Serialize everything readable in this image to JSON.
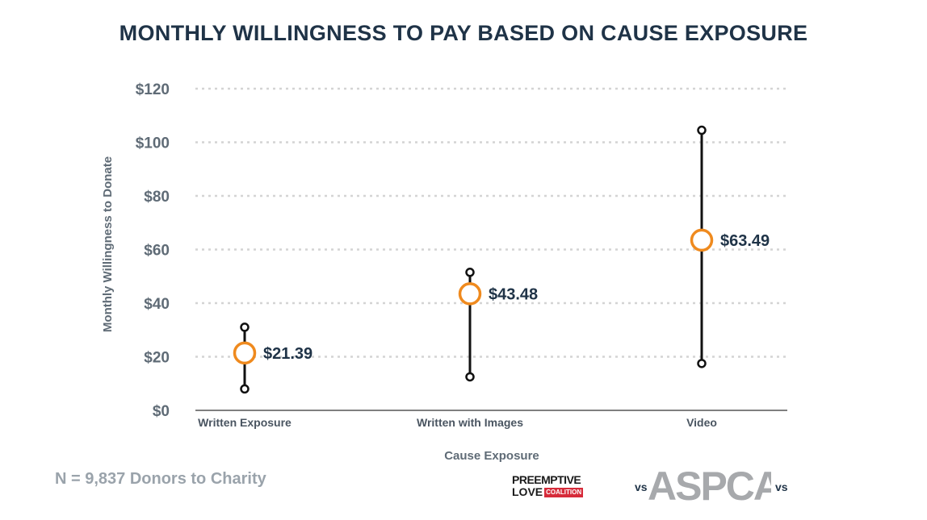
{
  "chart_data": {
    "type": "scatter",
    "title": "MONTHLY WILLINGNESS TO PAY BASED ON CAUSE EXPOSURE",
    "xlabel": "Cause Exposure",
    "ylabel": "Monthly Willingness to Donate",
    "ylim": [
      0,
      120
    ],
    "yticks": [
      0,
      20,
      40,
      60,
      80,
      100,
      120
    ],
    "ytick_labels": [
      "$0",
      "$20",
      "$40",
      "$60",
      "$80",
      "$100",
      "$120"
    ],
    "grid": true,
    "categories": [
      "Written Exposure",
      "Written with Images",
      "Video"
    ],
    "points": [
      {
        "category": "Written Exposure",
        "value": 21.39,
        "label": "$21.39",
        "low": 8,
        "high": 31
      },
      {
        "category": "Written with Images",
        "value": 43.48,
        "label": "$43.48",
        "low": 12.5,
        "high": 51.5
      },
      {
        "category": "Video",
        "value": 63.49,
        "label": "$63.49",
        "low": 17.5,
        "high": 104.5
      }
    ],
    "colors": {
      "marker": "#ef8a1e",
      "whisker": "#111111",
      "grid": "#d4d4d4",
      "axis": "#555555"
    }
  },
  "footnote": "N = 9,837 Donors to Charity",
  "logos": {
    "preemptive_top": "PREEMPTIVE",
    "preemptive_bottom": "LOVE",
    "preemptive_badge": "COALITION",
    "aspca": "ASPCA",
    "vs_left": "vs",
    "vs_right": "vs"
  }
}
